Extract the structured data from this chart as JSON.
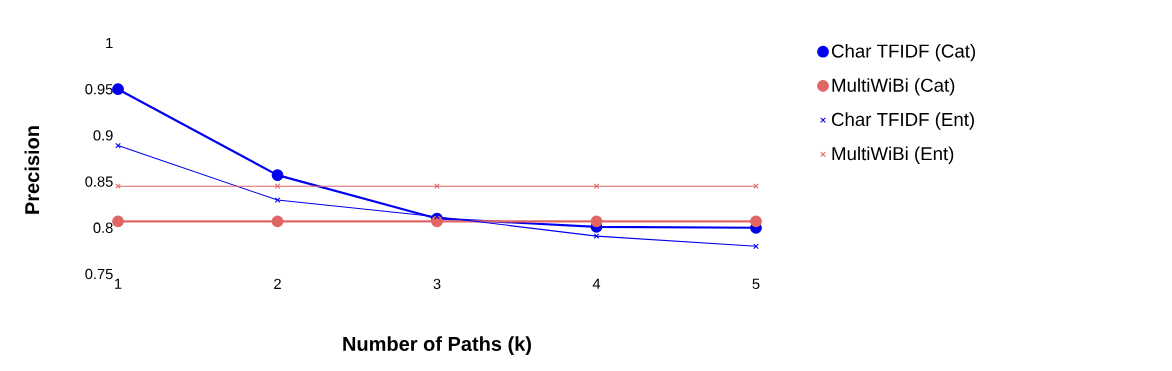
{
  "chart_data": {
    "type": "line",
    "xlabel": "Number of Paths (k)",
    "ylabel": "Precision",
    "x": [
      1,
      2,
      3,
      4,
      5
    ],
    "series": [
      {
        "name": "Char TFIDF (Cat)",
        "color": "#0000ee",
        "marker": "circle",
        "values": [
          0.95,
          0.857,
          0.81,
          0.801,
          0.8
        ]
      },
      {
        "name": "MultiWiBi (Cat)",
        "color": "#e06666",
        "marker": "circle",
        "values": [
          0.807,
          0.807,
          0.807,
          0.807,
          0.807
        ]
      },
      {
        "name": "Char TFIDF (Ent)",
        "color": "#0000ee",
        "marker": "cross",
        "values": [
          0.889,
          0.83,
          0.812,
          0.791,
          0.78
        ]
      },
      {
        "name": "MultiWiBi (Ent)",
        "color": "#e06666",
        "marker": "cross",
        "values": [
          0.845,
          0.845,
          0.845,
          0.845,
          0.845
        ]
      }
    ],
    "xlim": [
      1,
      5
    ],
    "xticks": [
      1,
      2,
      3,
      4,
      5
    ],
    "ylim": [
      0.75,
      1
    ],
    "yticks": [
      0.75,
      0.8,
      0.85,
      0.9,
      0.95,
      1
    ],
    "grid": false,
    "legend": "top right"
  }
}
